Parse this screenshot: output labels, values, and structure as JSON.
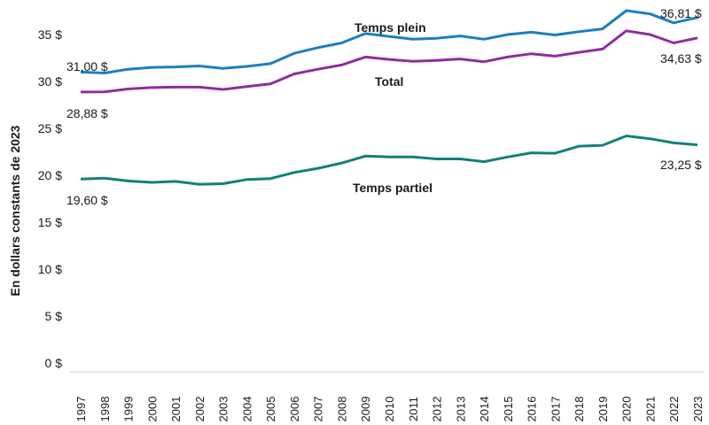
{
  "chart_data": {
    "type": "line",
    "title": "",
    "ylabel": "En dollars constants de 2023",
    "xlabel": "",
    "ylim": [
      0,
      37.5
    ],
    "yticks": [
      0,
      5,
      10,
      15,
      20,
      25,
      30,
      35
    ],
    "ytick_labels": [
      "0 $",
      "5 $",
      "10 $",
      "15 $",
      "20 $",
      "25 $",
      "30 $",
      "35 $"
    ],
    "x": [
      "1997",
      "1998",
      "1999",
      "2000",
      "2001",
      "2002",
      "2003",
      "2004",
      "2005",
      "2006",
      "2007",
      "2008",
      "2009",
      "2010",
      "2011",
      "2012",
      "2013",
      "2014",
      "2015",
      "2016",
      "2017",
      "2018",
      "2019",
      "2020",
      "2021",
      "2022",
      "2023"
    ],
    "series": [
      {
        "name": "Temps plein",
        "color": "#1b7fbd",
        "values": [
          31.0,
          30.9,
          31.3,
          31.5,
          31.55,
          31.65,
          31.4,
          31.6,
          31.9,
          33.0,
          33.6,
          34.1,
          35.1,
          34.8,
          34.5,
          34.6,
          34.85,
          34.5,
          35.0,
          35.25,
          34.95,
          35.3,
          35.6,
          37.55,
          37.2,
          36.25,
          36.81
        ],
        "start_label": "31,00 $",
        "end_label": "36,81 $"
      },
      {
        "name": "Total",
        "color": "#8e2e9c",
        "values": [
          28.88,
          28.9,
          29.2,
          29.35,
          29.4,
          29.4,
          29.15,
          29.45,
          29.75,
          30.8,
          31.3,
          31.75,
          32.6,
          32.35,
          32.15,
          32.25,
          32.4,
          32.1,
          32.6,
          32.95,
          32.7,
          33.1,
          33.45,
          35.4,
          35.0,
          34.1,
          34.63
        ],
        "start_label": "28,88 $",
        "end_label": "34,63 $"
      },
      {
        "name": "Temps partiel",
        "color": "#13807a",
        "values": [
          19.6,
          19.7,
          19.4,
          19.25,
          19.35,
          19.05,
          19.1,
          19.55,
          19.65,
          20.3,
          20.75,
          21.3,
          22.05,
          21.95,
          21.95,
          21.75,
          21.75,
          21.45,
          21.95,
          22.4,
          22.35,
          23.1,
          23.2,
          24.2,
          23.9,
          23.45,
          23.25
        ],
        "start_label": "19,60 $",
        "end_label": "23,25 $"
      }
    ]
  }
}
